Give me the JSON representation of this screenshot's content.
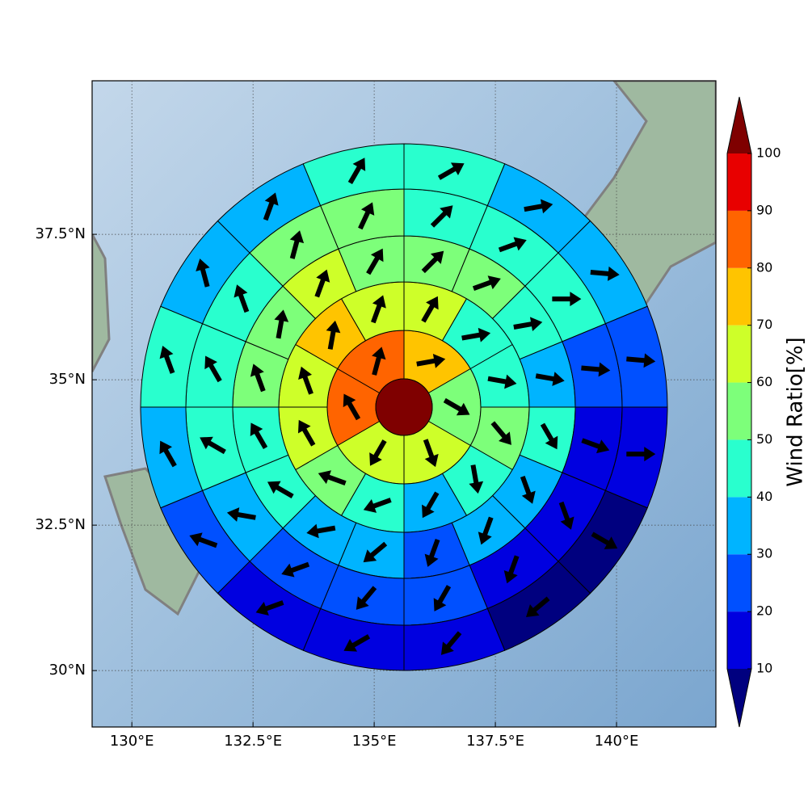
{
  "chart_data": {
    "type": "polar-grid-map",
    "center_value": 100,
    "rings": [
      {
        "values": [
          75,
          55,
          65,
          65,
          85,
          85
        ],
        "directions": [
          80,
          120,
          160,
          210,
          330,
          15
        ]
      },
      {
        "values": [
          65,
          45,
          45,
          55,
          45,
          35,
          45,
          55,
          65,
          65,
          75,
          65
        ],
        "directions": [
          30,
          80,
          100,
          140,
          170,
          210,
          250,
          290,
          330,
          340,
          10,
          20
        ]
      },
      {
        "values": [
          55,
          55,
          45,
          35,
          45,
          35,
          35,
          25,
          35,
          35,
          45,
          45,
          55,
          55,
          65,
          55
        ],
        "directions": [
          45,
          70,
          80,
          100,
          150,
          160,
          200,
          200,
          230,
          260,
          300,
          330,
          340,
          10,
          20,
          30
        ]
      },
      {
        "values": [
          45,
          45,
          45,
          25,
          15,
          15,
          15,
          25,
          25,
          25,
          35,
          45,
          45,
          45,
          55,
          55
        ],
        "directions": [
          45,
          70,
          90,
          95,
          110,
          160,
          200,
          210,
          220,
          250,
          280,
          300,
          330,
          340,
          15,
          25
        ]
      },
      {
        "values": [
          45,
          35,
          35,
          25,
          15,
          5,
          5,
          15,
          15,
          15,
          25,
          35,
          45,
          35,
          35,
          45
        ],
        "directions": [
          60,
          80,
          95,
          95,
          90,
          120,
          230,
          220,
          240,
          250,
          290,
          330,
          340,
          345,
          20,
          30
        ]
      }
    ],
    "xlim": [
      129.18,
      142.05
    ],
    "ylim": [
      29.03,
      40.14
    ],
    "xticks": [
      {
        "value": 130,
        "label": "130°E"
      },
      {
        "value": 132.5,
        "label": "132.5°E"
      },
      {
        "value": 135,
        "label": "135°E"
      },
      {
        "value": 137.5,
        "label": "137.5°E"
      },
      {
        "value": 140,
        "label": "140°E"
      }
    ],
    "yticks": [
      {
        "value": 30,
        "label": "30°N"
      },
      {
        "value": 32.5,
        "label": "32.5°N"
      },
      {
        "value": 35,
        "label": "35°N"
      },
      {
        "value": 37.5,
        "label": "37.5°N"
      }
    ],
    "grid": true,
    "colorbar": {
      "label": "Wind Ratio[%]",
      "ticks": [
        10,
        20,
        30,
        40,
        50,
        60,
        70,
        80,
        90,
        100
      ],
      "colors": [
        "#0000e0",
        "#0050ff",
        "#00b4ff",
        "#29ffce",
        "#7dff7a",
        "#ceff29",
        "#ffc400",
        "#ff6400",
        "#e80000"
      ],
      "under_color": "#00007f",
      "over_color": "#7f0000"
    }
  }
}
